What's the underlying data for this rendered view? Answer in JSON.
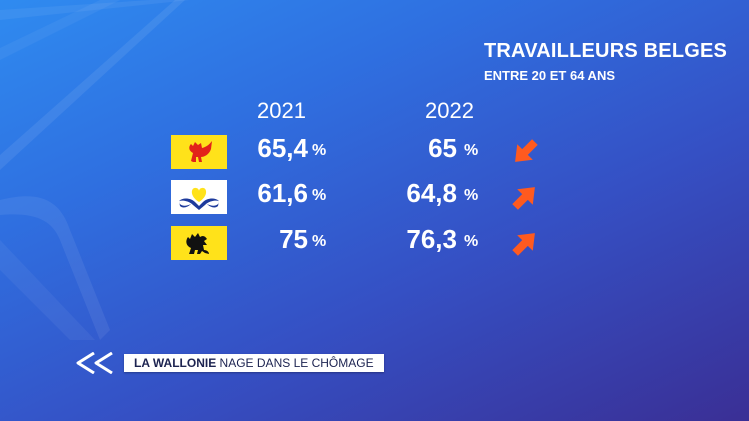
{
  "title": "TRAVAILLEURS BELGES",
  "subtitle": "ENTRE 20 ET 64 ANS",
  "years": [
    "2021",
    "2022"
  ],
  "unit": "%",
  "rows": [
    {
      "flag": "wallonia-flag-icon",
      "v2021": "65,4",
      "v2022": "65",
      "trend": "down"
    },
    {
      "flag": "brussels-flag-icon",
      "v2021": "61,6",
      "v2022": "64,8",
      "trend": "up"
    },
    {
      "flag": "flanders-flag-icon",
      "v2021": "75",
      "v2022": "76,3",
      "trend": "up"
    }
  ],
  "colors": {
    "arrow": "#ff5a1f",
    "flag_yellow": "#ffe21a",
    "wallonia_rooster": "#e2231a",
    "brussels_iris": "#1d3a9c",
    "flanders_lion": "#111111"
  },
  "ticker": {
    "bold": "LA WALLONIE",
    "text": " NAGE DANS LE CHÔMAGE"
  }
}
